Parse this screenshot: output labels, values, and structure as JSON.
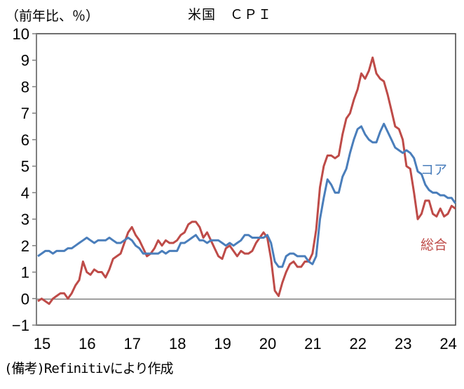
{
  "chart": {
    "title": "米国　ＣＰＩ",
    "unit_label": "（前年比、％）",
    "note": "(備考)Refinitivにより作成",
    "legend": {
      "core": "コア",
      "headline": "総合"
    },
    "colors": {
      "core": "#4a7ebb",
      "headline": "#be4b48",
      "axis": "#808080",
      "frame": "#404040"
    },
    "y_ticks": [
      "10",
      "9",
      "8",
      "7",
      "6",
      "5",
      "4",
      "3",
      "2",
      "1",
      "0",
      "−1"
    ],
    "x_ticks": [
      "15",
      "16",
      "17",
      "18",
      "19",
      "20",
      "21",
      "22",
      "23",
      "24"
    ]
  },
  "chart_data": {
    "type": "line",
    "title": "米国 CPI",
    "xlabel": "",
    "ylabel": "前年比、%",
    "ylim": [
      -1,
      10
    ],
    "x_tick_labels": [
      "15",
      "16",
      "17",
      "18",
      "19",
      "20",
      "21",
      "22",
      "23",
      "24"
    ],
    "x_start": "2015-01",
    "x_end": "2024-04",
    "frequency": "monthly",
    "grid": false,
    "legend_position": "inline-right",
    "series": [
      {
        "name": "コア",
        "color": "#4a7ebb",
        "values": [
          1.6,
          1.7,
          1.8,
          1.8,
          1.7,
          1.8,
          1.8,
          1.8,
          1.9,
          1.9,
          2.0,
          2.1,
          2.2,
          2.3,
          2.2,
          2.1,
          2.2,
          2.2,
          2.2,
          2.3,
          2.2,
          2.1,
          2.1,
          2.2,
          2.3,
          2.2,
          2.0,
          1.9,
          1.7,
          1.7,
          1.7,
          1.7,
          1.7,
          1.8,
          1.7,
          1.8,
          1.8,
          1.8,
          2.1,
          2.1,
          2.2,
          2.3,
          2.4,
          2.2,
          2.2,
          2.1,
          2.2,
          2.2,
          2.2,
          2.1,
          2.0,
          2.1,
          2.0,
          2.1,
          2.2,
          2.4,
          2.4,
          2.3,
          2.3,
          2.3,
          2.3,
          2.4,
          2.1,
          1.4,
          1.2,
          1.2,
          1.6,
          1.7,
          1.7,
          1.6,
          1.6,
          1.6,
          1.4,
          1.3,
          1.6,
          3.0,
          3.8,
          4.5,
          4.3,
          4.0,
          4.0,
          4.6,
          4.9,
          5.5,
          6.0,
          6.4,
          6.5,
          6.2,
          6.0,
          5.9,
          5.9,
          6.3,
          6.6,
          6.3,
          6.0,
          5.7,
          5.6,
          5.5,
          5.6,
          5.5,
          5.3,
          4.8,
          4.7,
          4.3,
          4.1,
          4.0,
          4.0,
          3.9,
          3.9,
          3.8,
          3.8,
          3.6
        ]
      },
      {
        "name": "総合",
        "color": "#be4b48",
        "values": [
          -0.1,
          0.0,
          -0.1,
          -0.2,
          0.0,
          0.1,
          0.2,
          0.2,
          0.0,
          0.2,
          0.5,
          0.7,
          1.4,
          1.0,
          0.9,
          1.1,
          1.0,
          1.0,
          0.8,
          1.1,
          1.5,
          1.6,
          1.7,
          2.1,
          2.5,
          2.7,
          2.4,
          2.2,
          1.9,
          1.6,
          1.7,
          1.9,
          2.2,
          2.0,
          2.2,
          2.1,
          2.1,
          2.2,
          2.4,
          2.5,
          2.8,
          2.9,
          2.9,
          2.7,
          2.3,
          2.5,
          2.2,
          1.9,
          1.6,
          1.5,
          1.9,
          2.0,
          1.8,
          1.6,
          1.8,
          1.7,
          1.7,
          1.8,
          2.1,
          2.3,
          2.5,
          2.3,
          1.5,
          0.3,
          0.1,
          0.6,
          1.0,
          1.3,
          1.4,
          1.2,
          1.2,
          1.4,
          1.4,
          1.7,
          2.6,
          4.2,
          5.0,
          5.4,
          5.4,
          5.3,
          5.4,
          6.2,
          6.8,
          7.0,
          7.5,
          7.9,
          8.5,
          8.3,
          8.6,
          9.1,
          8.5,
          8.3,
          8.2,
          7.7,
          7.1,
          6.5,
          6.4,
          6.0,
          5.0,
          4.9,
          4.0,
          3.0,
          3.2,
          3.7,
          3.7,
          3.2,
          3.1,
          3.4,
          3.1,
          3.2,
          3.5,
          3.4
        ]
      }
    ]
  }
}
